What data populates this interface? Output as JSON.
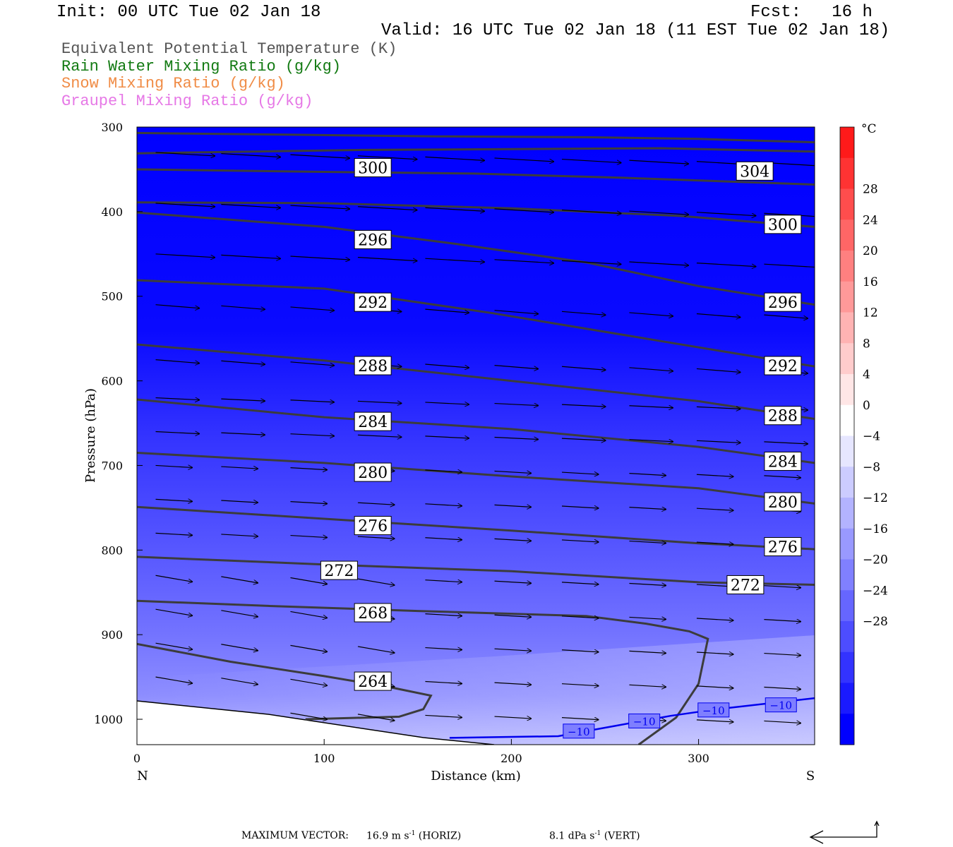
{
  "header": {
    "init": "Init: 00 UTC Tue 02 Jan 18",
    "fcst_label": "Fcst:",
    "fcst_value": "16 h",
    "valid": "Valid: 16 UTC Tue 02 Jan 18 (11 EST Tue 02 Jan 18)"
  },
  "legend": [
    {
      "text": "Equivalent Potential Temperature (K)",
      "color": "#555555"
    },
    {
      "text": "Rain Water Mixing Ratio (g/kg)",
      "color": "#127a12"
    },
    {
      "text": "Snow Mixing Ratio (g/kg)",
      "color": "#f08c46"
    },
    {
      "text": "Graupel Mixing Ratio (g/kg)",
      "color": "#e678e6"
    }
  ],
  "footer": {
    "label": "MAXIMUM VECTOR:",
    "horiz_value": "16.9 m s",
    "horiz_exp": "-1",
    "horiz_unit": "(HORIZ)",
    "vert_value": "8.1 dPa s",
    "vert_exp": "-1",
    "vert_unit": "(VERT)"
  },
  "chart_data": {
    "type": "cross-section",
    "xlabel": "Distance (km)",
    "ylabel": "Pressure (hPa)",
    "xlim": [
      0,
      362
    ],
    "ylim": [
      1030,
      300
    ],
    "x_ticks": [
      0,
      100,
      200,
      300
    ],
    "y_ticks": [
      300,
      400,
      500,
      600,
      700,
      800,
      900,
      1000
    ],
    "x_end_labels": {
      "left": "N",
      "right": "S"
    },
    "colorbar": {
      "unit": "°C",
      "labels": [
        "28",
        "24",
        "20",
        "16",
        "12",
        "8",
        "4",
        "0",
        "−4",
        "−8",
        "−12",
        "−16",
        "−20",
        "−24",
        "−28"
      ],
      "colors": [
        "#ff1a1a",
        "#ff3333",
        "#ff4d4d",
        "#ff6666",
        "#ff8080",
        "#ff9999",
        "#ffb3b3",
        "#ffcccc",
        "#ffe6e6",
        "#ffffff",
        "#e6e6ff",
        "#ccccff",
        "#b3b3ff",
        "#9999ff",
        "#8080ff",
        "#6666ff",
        "#4d4dff",
        "#3333ff",
        "#1a1aff",
        "#0000ff"
      ]
    },
    "temperature_isotherm": {
      "label": "−10",
      "color": "#0000ee",
      "points": [
        [
          167,
          1022
        ],
        [
          225,
          1020
        ],
        [
          255,
          1008
        ],
        [
          285,
          996
        ],
        [
          310,
          988
        ],
        [
          362,
          975
        ]
      ],
      "label_positions": [
        [
          236,
          1014
        ],
        [
          271,
          1002
        ],
        [
          308,
          989
        ],
        [
          344,
          983
        ]
      ]
    },
    "theta_e_contours": [
      {
        "value": "304",
        "points": [
          [
            0,
            307
          ],
          [
            80,
            309
          ],
          [
            160,
            311
          ],
          [
            240,
            312
          ],
          [
            300,
            314
          ],
          [
            362,
            318
          ]
        ],
        "labels": []
      },
      {
        "value": "",
        "points": [
          [
            0,
            331
          ],
          [
            120,
            327
          ],
          [
            200,
            326
          ],
          [
            280,
            325
          ],
          [
            362,
            329
          ]
        ],
        "labels": []
      },
      {
        "value": "304",
        "points": [
          [
            0,
            350
          ],
          [
            100,
            353
          ],
          [
            180,
            355
          ],
          [
            260,
            360
          ],
          [
            362,
            368
          ]
        ],
        "labels": [
          [
            330,
            352
          ]
        ]
      },
      {
        "value": "300",
        "points": [
          [
            0,
            389
          ],
          [
            100,
            390
          ],
          [
            200,
            396
          ],
          [
            290,
            405
          ],
          [
            362,
            418
          ]
        ],
        "labels": [
          [
            126,
            348
          ],
          [
            345,
            415
          ]
        ]
      },
      {
        "value": "296",
        "points": [
          [
            0,
            401
          ],
          [
            100,
            418
          ],
          [
            170,
            438
          ],
          [
            240,
            460
          ],
          [
            300,
            488
          ],
          [
            362,
            510
          ]
        ],
        "labels": [
          [
            126,
            433
          ],
          [
            345,
            507
          ]
        ]
      },
      {
        "value": "292",
        "points": [
          [
            0,
            481
          ],
          [
            100,
            491
          ],
          [
            190,
            520
          ],
          [
            280,
            553
          ],
          [
            362,
            583
          ]
        ],
        "labels": [
          [
            126,
            507
          ],
          [
            345,
            582
          ]
        ]
      },
      {
        "value": "288",
        "points": [
          [
            0,
            557
          ],
          [
            100,
            576
          ],
          [
            200,
            600
          ],
          [
            300,
            624
          ],
          [
            362,
            645
          ]
        ],
        "labels": [
          [
            126,
            582
          ],
          [
            345,
            641
          ]
        ]
      },
      {
        "value": "284",
        "points": [
          [
            0,
            622
          ],
          [
            100,
            643
          ],
          [
            200,
            657
          ],
          [
            300,
            678
          ],
          [
            362,
            697
          ]
        ],
        "labels": [
          [
            126,
            648
          ],
          [
            345,
            695
          ]
        ]
      },
      {
        "value": "280",
        "points": [
          [
            0,
            685
          ],
          [
            100,
            697
          ],
          [
            200,
            713
          ],
          [
            300,
            727
          ],
          [
            362,
            745
          ]
        ],
        "labels": [
          [
            126,
            708
          ],
          [
            345,
            743
          ]
        ]
      },
      {
        "value": "276",
        "points": [
          [
            0,
            749
          ],
          [
            100,
            763
          ],
          [
            200,
            777
          ],
          [
            300,
            792
          ],
          [
            362,
            799
          ]
        ],
        "labels": [
          [
            126,
            771
          ],
          [
            345,
            796
          ]
        ]
      },
      {
        "value": "272",
        "points": [
          [
            0,
            808
          ],
          [
            100,
            817
          ],
          [
            200,
            825
          ],
          [
            300,
            838
          ],
          [
            362,
            841
          ]
        ],
        "labels": [
          [
            108,
            824
          ],
          [
            325,
            841
          ]
        ]
      },
      {
        "value": "268",
        "points": [
          [
            0,
            860
          ],
          [
            70,
            866
          ],
          [
            150,
            872
          ],
          [
            240,
            878
          ],
          [
            272,
            887
          ],
          [
            295,
            896
          ],
          [
            305,
            905
          ],
          [
            300,
            958
          ],
          [
            288,
            998
          ],
          [
            268,
            1030
          ]
        ],
        "labels": [
          [
            126,
            874
          ]
        ]
      },
      {
        "value": "264",
        "points": [
          [
            0,
            911
          ],
          [
            50,
            932
          ],
          [
            100,
            949
          ],
          [
            135,
            962
          ],
          [
            157,
            972
          ],
          [
            153,
            988
          ],
          [
            140,
            997
          ],
          [
            90,
            1000
          ]
        ],
        "labels": [
          [
            126,
            955
          ]
        ]
      }
    ],
    "wind_vectors": "arrow field (horizontal/vertical circulation), dominant direction left-to-right"
  }
}
